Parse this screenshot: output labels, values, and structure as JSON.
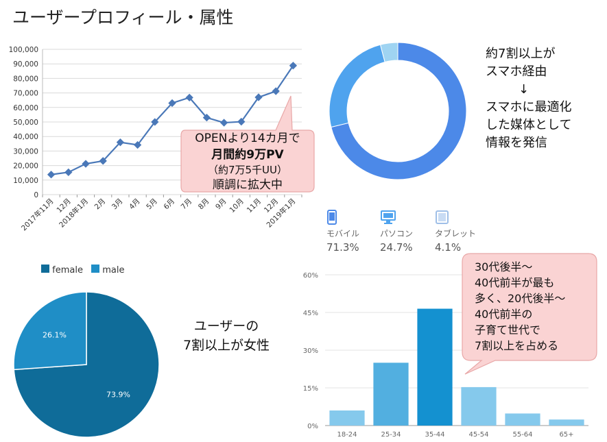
{
  "title": "ユーザープロフィール・属性",
  "colors": {
    "line": "#4a78b8",
    "donut_mobile": "#4c89e8",
    "donut_pc": "#4fa3ee",
    "donut_tablet": "#9fd4f2",
    "pie_female": "#0f6c99",
    "pie_male": "#1f8ec6",
    "bar_light": "#85c9ec",
    "bar_mid": "#52afe0",
    "bar_dark": "#1491d0",
    "callout_fill": "#fad3d3",
    "callout_stroke": "#e8a7a7"
  },
  "chart_data": [
    {
      "type": "line",
      "x": [
        "2017年11月",
        "12月",
        "2018年1月",
        "2月",
        "3月",
        "4月",
        "5月",
        "6月",
        "7月",
        "8月",
        "9月",
        "10月",
        "11月",
        "12月",
        "2019年1月"
      ],
      "y": [
        13800,
        15400,
        21200,
        23200,
        36000,
        34200,
        50000,
        63000,
        66800,
        53000,
        49500,
        50200,
        67000,
        71200,
        88800
      ],
      "yticks": [
        "0",
        "10,000",
        "20,000",
        "30,000",
        "40,000",
        "50,000",
        "60,000",
        "70,000",
        "80,000",
        "90,000",
        "100,000"
      ],
      "ylim": [
        0,
        100000
      ],
      "grid": true,
      "callout": {
        "line1": "OPENより14カ月で",
        "line2": "月間約9万PV",
        "line3": "（約7万5千UU）",
        "line4": "順調に拡大中"
      }
    },
    {
      "type": "pie",
      "variant": "donut",
      "labels": [
        "モバイル",
        "パソコン",
        "タブレット"
      ],
      "values": [
        71.3,
        24.7,
        4.1
      ],
      "value_labels": [
        "71.3%",
        "24.7%",
        "4.1%"
      ],
      "icons": [
        "mobile-icon",
        "desktop-icon",
        "tablet-icon"
      ],
      "note": [
        "約7割以上が",
        "スマホ経由",
        "↓",
        "スマホに最適化",
        "した媒体として",
        "情報を発信"
      ]
    },
    {
      "type": "pie",
      "labels": [
        "female",
        "male"
      ],
      "values": [
        73.9,
        26.1
      ],
      "value_labels": [
        "73.9%",
        "26.1%"
      ],
      "legend": "top-left",
      "note": [
        "ユーザーの",
        "7割以上が女性"
      ]
    },
    {
      "type": "bar",
      "categories": [
        "18-24",
        "25-34",
        "35-44",
        "45-54",
        "55-64",
        "65+"
      ],
      "values": [
        6,
        25,
        46.5,
        15.3,
        4.8,
        2.4
      ],
      "yticks": [
        "0%",
        "15%",
        "30%",
        "45%",
        "60%"
      ],
      "ylim": [
        0,
        60
      ],
      "grid": true,
      "callout": [
        "30代後半～",
        "40代前半が最も",
        "多く、20代後半～",
        "40代前半の",
        "子育て世代で",
        "7割以上を占める"
      ]
    }
  ]
}
